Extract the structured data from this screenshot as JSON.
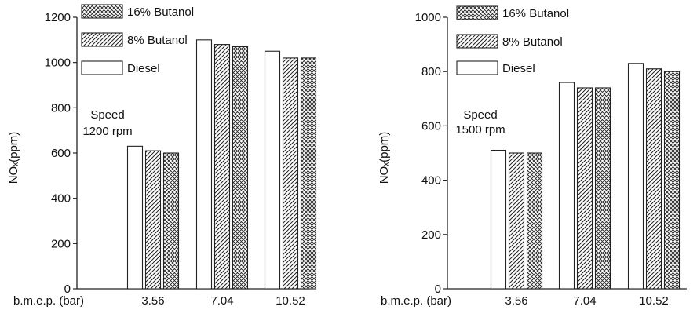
{
  "chart_data": [
    {
      "type": "bar",
      "title": "",
      "xlabel": "b.m.e.p. (bar)",
      "ylabel": "NOₓ(ppm)",
      "ylim": [
        0,
        1200
      ],
      "yticks": [
        "0",
        "200",
        "400",
        "600",
        "800",
        "1000",
        "1200"
      ],
      "categories": [
        "3.56",
        "7.04",
        "10.52"
      ],
      "series": [
        {
          "name": "Diesel",
          "values": [
            630,
            1100,
            1050
          ]
        },
        {
          "name": "8% Butanol",
          "values": [
            610,
            1080,
            1020
          ]
        },
        {
          "name": "16% Butanol",
          "values": [
            600,
            1070,
            1020
          ]
        }
      ],
      "legend": [
        "16% Butanol",
        "8% Butanol",
        "Diesel"
      ],
      "legend_position": "top-left",
      "annotation": [
        "Speed",
        "1200 rpm"
      ],
      "grid": false
    },
    {
      "type": "bar",
      "title": "",
      "xlabel": "b.m.e.p. (bar)",
      "ylabel": "NOₓ(ppm)",
      "ylim": [
        0,
        1000
      ],
      "yticks": [
        "0",
        "200",
        "400",
        "600",
        "800",
        "1000"
      ],
      "categories": [
        "3.56",
        "7.04",
        "10.52"
      ],
      "series": [
        {
          "name": "Diesel",
          "values": [
            510,
            760,
            830
          ]
        },
        {
          "name": "8% Butanol",
          "values": [
            500,
            740,
            810
          ]
        },
        {
          "name": "16% Butanol",
          "values": [
            500,
            740,
            800
          ]
        }
      ],
      "legend": [
        "16% Butanol",
        "8% Butanol",
        "Diesel"
      ],
      "legend_position": "top-left",
      "annotation": [
        "Speed",
        "1500 rpm"
      ],
      "grid": false
    }
  ]
}
